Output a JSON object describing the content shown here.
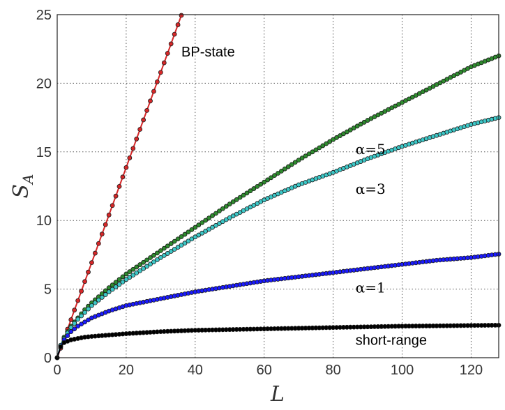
{
  "chart_data": {
    "type": "line",
    "title": "",
    "xlabel": "L",
    "ylabel": "S",
    "ylabel_sub": "A",
    "xlim": [
      0,
      128
    ],
    "ylim": [
      0,
      25
    ],
    "x_ticks": [
      0,
      20,
      40,
      60,
      80,
      100,
      120
    ],
    "y_ticks": [
      0,
      5,
      10,
      15,
      20,
      25
    ],
    "grid": true,
    "legend": "none",
    "series": [
      {
        "label_text": "BP-state",
        "color": "#d62728",
        "marker_fill": "#d62728",
        "x": [
          0,
          1,
          2,
          3,
          4,
          5,
          6,
          7,
          8,
          9,
          10,
          11,
          12,
          13,
          14,
          15,
          16,
          17,
          18,
          19,
          20,
          21,
          22,
          23,
          24,
          25,
          26,
          27,
          28,
          29,
          30,
          31,
          32,
          33,
          34,
          35,
          36
        ],
        "y": [
          0,
          0.69,
          1.39,
          2.08,
          2.77,
          3.47,
          4.16,
          4.85,
          5.55,
          6.24,
          6.93,
          7.62,
          8.32,
          9.01,
          9.7,
          10.4,
          11.09,
          11.78,
          12.48,
          13.17,
          13.86,
          14.56,
          15.25,
          15.94,
          16.64,
          17.33,
          18.02,
          18.71,
          19.41,
          20.1,
          20.79,
          21.49,
          22.18,
          22.87,
          23.57,
          24.26,
          24.95
        ]
      },
      {
        "label_text": "α=5",
        "color": "#1f7a1f",
        "marker_fill": "#2e8b2e",
        "x": [
          0,
          1,
          2,
          4,
          6,
          8,
          10,
          15,
          20,
          30,
          40,
          50,
          60,
          70,
          80,
          90,
          100,
          110,
          120,
          128
        ],
        "y": [
          0,
          0.9,
          1.5,
          2.3,
          2.9,
          3.5,
          4.0,
          5.1,
          6.1,
          7.8,
          9.5,
          11.2,
          12.8,
          14.4,
          15.9,
          17.3,
          18.6,
          19.9,
          21.2,
          22.0
        ]
      },
      {
        "label_text": "α=3",
        "color": "#1a9a9a",
        "marker_fill": "#3cc7c7",
        "x": [
          0,
          1,
          2,
          4,
          6,
          8,
          10,
          15,
          20,
          30,
          40,
          50,
          60,
          70,
          80,
          90,
          100,
          110,
          120,
          128
        ],
        "y": [
          0,
          0.9,
          1.4,
          2.2,
          2.8,
          3.3,
          3.8,
          4.8,
          5.7,
          7.3,
          8.8,
          10.2,
          11.5,
          12.6,
          13.5,
          14.5,
          15.4,
          16.2,
          17.0,
          17.5
        ]
      },
      {
        "label_text": "α=1",
        "color": "#0000cc",
        "marker_fill": "#1a1aff",
        "x": [
          0,
          1,
          2,
          4,
          6,
          8,
          10,
          15,
          20,
          30,
          40,
          50,
          60,
          70,
          80,
          90,
          100,
          110,
          120,
          128
        ],
        "y": [
          0,
          0.8,
          1.3,
          1.9,
          2.3,
          2.6,
          2.9,
          3.4,
          3.8,
          4.3,
          4.8,
          5.2,
          5.6,
          5.9,
          6.2,
          6.5,
          6.8,
          7.1,
          7.3,
          7.55
        ]
      },
      {
        "label_text": "short-range",
        "color": "#000000",
        "marker_fill": "#000000",
        "x": [
          0,
          1,
          2,
          4,
          6,
          8,
          10,
          15,
          20,
          30,
          40,
          50,
          60,
          70,
          80,
          90,
          100,
          110,
          120,
          128
        ],
        "y": [
          0,
          0.8,
          1.1,
          1.3,
          1.4,
          1.5,
          1.55,
          1.65,
          1.75,
          1.9,
          2.0,
          2.05,
          2.1,
          2.15,
          2.2,
          2.25,
          2.3,
          2.32,
          2.35,
          2.37
        ]
      }
    ],
    "annotations": [
      {
        "text": "BP-state",
        "x": 36,
        "y": 22.3,
        "math": false
      },
      {
        "text": "α=5",
        "x": 86.5,
        "y": 15.2,
        "math": true
      },
      {
        "text": "α=3",
        "x": 86.5,
        "y": 12.3,
        "math": true
      },
      {
        "text": "α=1",
        "x": 86.5,
        "y": 5.1,
        "math": true
      },
      {
        "text": "short-range",
        "x": 86.5,
        "y": 1.3,
        "math": false
      }
    ]
  }
}
